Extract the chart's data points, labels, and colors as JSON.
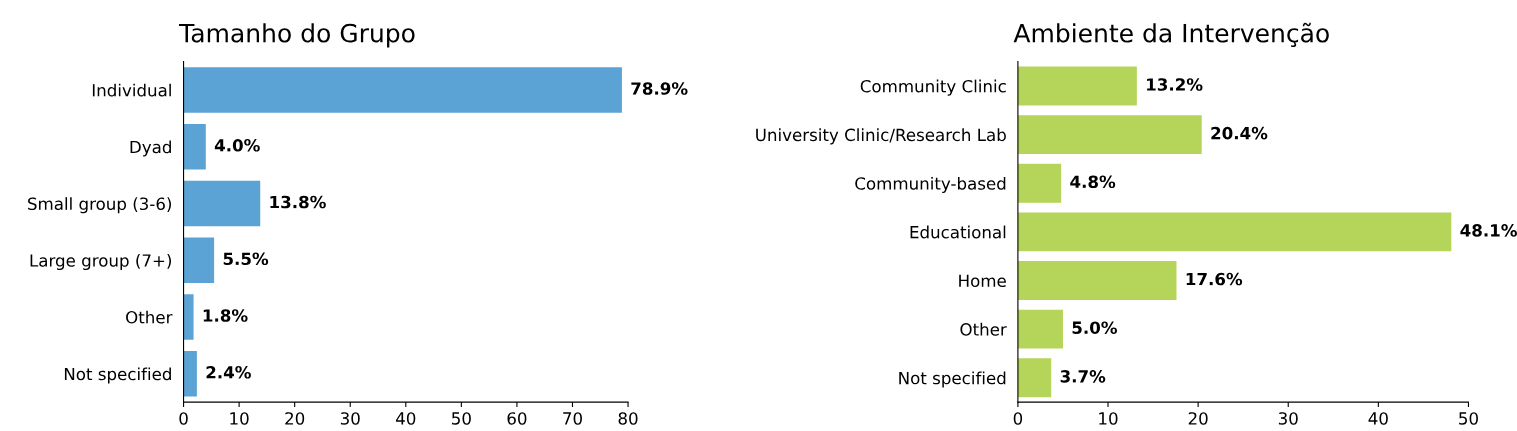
{
  "chart_data": [
    {
      "type": "bar",
      "orientation": "horizontal",
      "title": "Tamanho do Grupo",
      "categories": [
        "Individual",
        "Dyad",
        "Small group (3-6)",
        "Large group (7+)",
        "Other",
        "Not specified"
      ],
      "values": [
        78.9,
        4.0,
        13.8,
        5.5,
        1.8,
        2.4
      ],
      "color": "#5ba3d4",
      "value_labels": [
        "78.9%",
        "4.0%",
        "13.8%",
        "5.5%",
        "1.8%",
        "2.4%"
      ],
      "xlim": [
        0,
        80
      ],
      "xticks": [
        0,
        10,
        20,
        30,
        40,
        50,
        60,
        70,
        80
      ],
      "grid": false,
      "legend": false
    },
    {
      "type": "bar",
      "orientation": "horizontal",
      "title": "Ambiente da Intervenção",
      "categories": [
        "Community Clinic",
        "University Clinic/Research Lab",
        "Community-based",
        "Educational",
        "Home",
        "Other",
        "Not specified"
      ],
      "values": [
        13.2,
        20.4,
        4.8,
        48.1,
        17.6,
        5.0,
        3.7
      ],
      "color": "#b5d55a",
      "value_labels": [
        "13.2%",
        "20.4%",
        "4.8%",
        "48.1%",
        "17.6%",
        "5.0%",
        "3.7%"
      ],
      "xlim": [
        0,
        50
      ],
      "xticks": [
        0,
        10,
        20,
        30,
        40,
        50
      ],
      "grid": false,
      "legend": false
    }
  ]
}
